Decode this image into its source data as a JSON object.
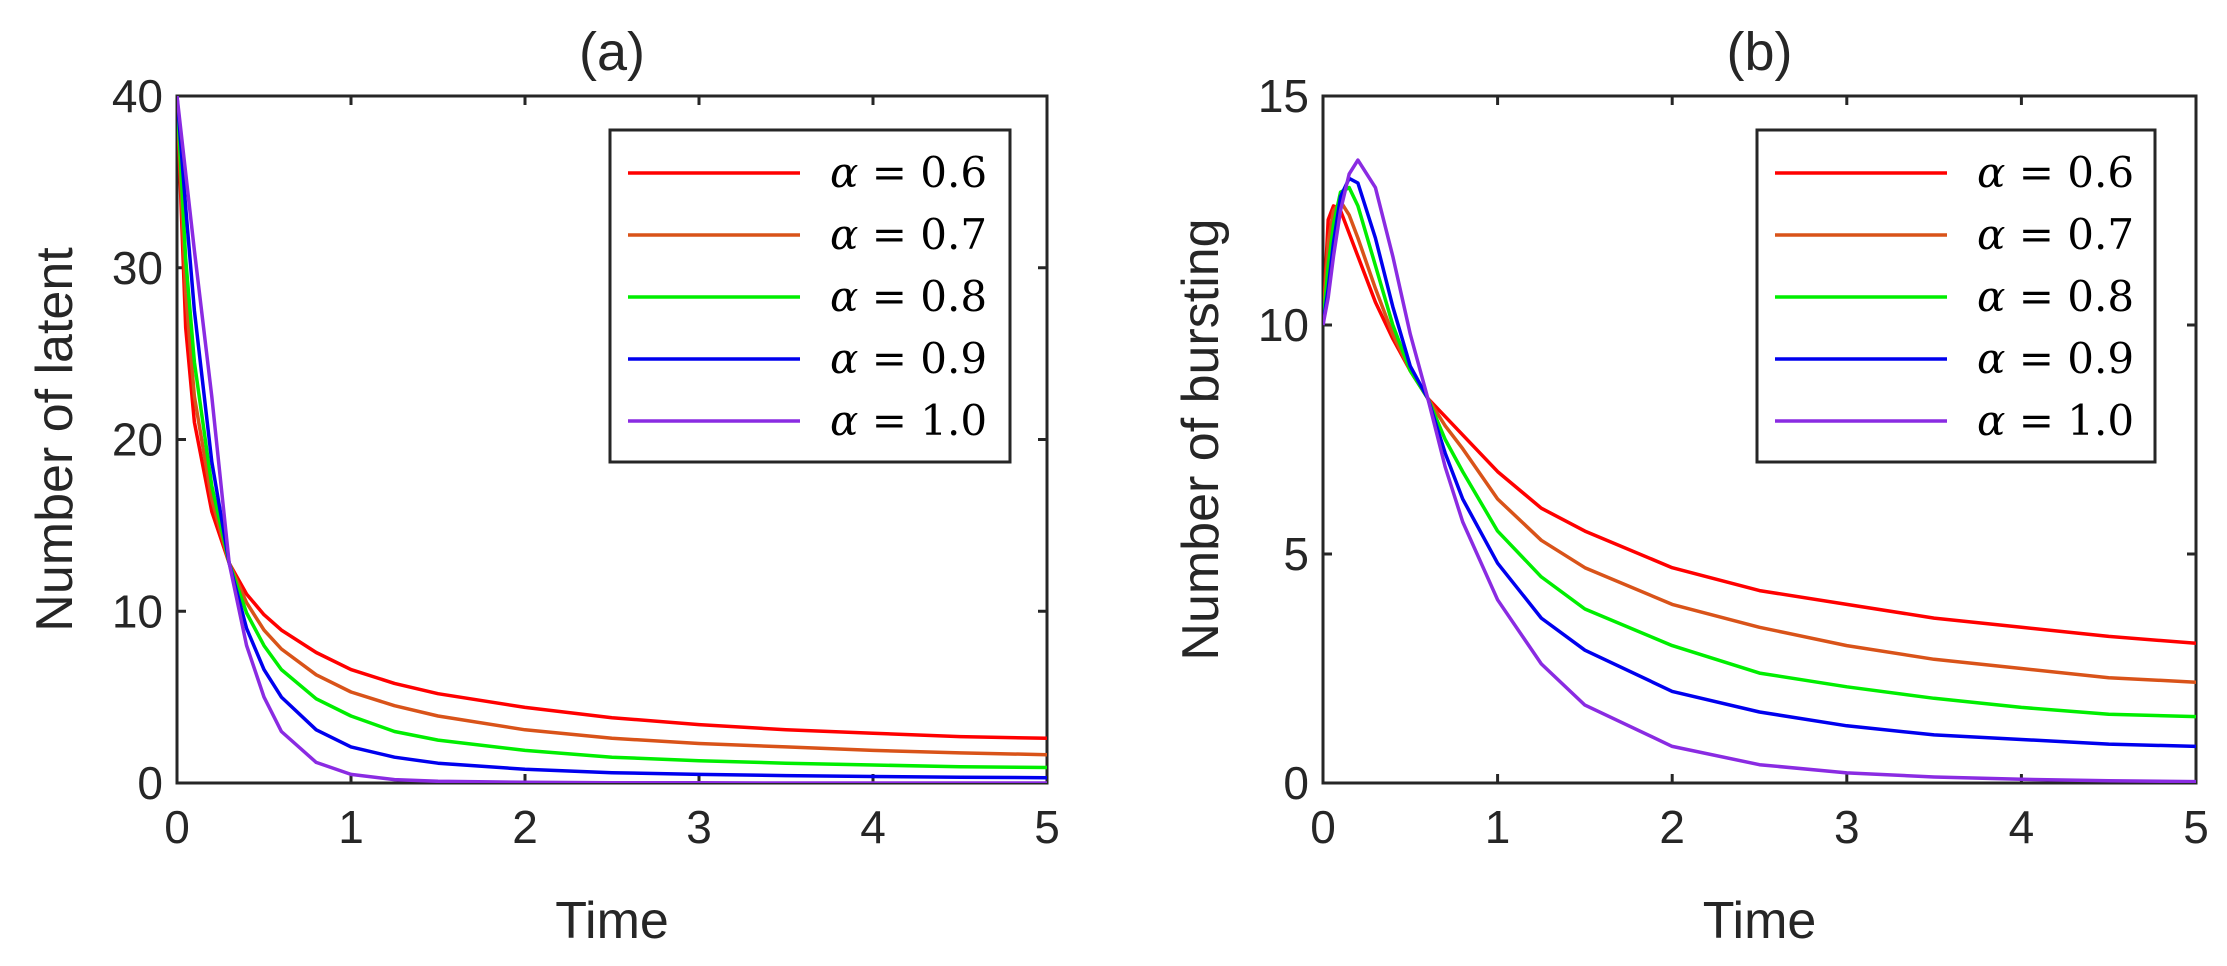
{
  "chart_data": [
    {
      "type": "line",
      "title": "(a)",
      "xlabel": "Time",
      "ylabel": "Number of latent",
      "xlim": [
        0,
        5
      ],
      "ylim": [
        0,
        40
      ],
      "xticks": [
        "0",
        "1",
        "2",
        "3",
        "4",
        "5"
      ],
      "yticks": [
        "0",
        "10",
        "20",
        "30",
        "40"
      ],
      "grid": false,
      "legend": "top-right",
      "x": [
        0,
        0.05,
        0.1,
        0.2,
        0.3,
        0.4,
        0.5,
        0.6,
        0.8,
        1.0,
        1.25,
        1.5,
        2.0,
        2.5,
        3.0,
        3.5,
        4.0,
        4.5,
        5.0
      ],
      "series": [
        {
          "name": "0.6",
          "color": "#ff0000",
          "values": [
            40,
            26.5,
            21,
            15.8,
            12.8,
            11.0,
            9.8,
            8.9,
            7.6,
            6.6,
            5.8,
            5.2,
            4.4,
            3.8,
            3.4,
            3.1,
            2.9,
            2.7,
            2.6
          ]
        },
        {
          "name": "0.7",
          "color": "#d95319",
          "values": [
            40,
            28.5,
            22.5,
            16.5,
            12.8,
            10.5,
            8.9,
            7.8,
            6.3,
            5.3,
            4.5,
            3.9,
            3.1,
            2.6,
            2.3,
            2.1,
            1.9,
            1.75,
            1.65
          ]
        },
        {
          "name": "0.8",
          "color": "#00ee00",
          "values": [
            40,
            30.5,
            24.5,
            17.3,
            12.8,
            9.9,
            8.0,
            6.6,
            4.9,
            3.9,
            3.0,
            2.5,
            1.9,
            1.5,
            1.3,
            1.15,
            1.05,
            0.95,
            0.9
          ]
        },
        {
          "name": "0.9",
          "color": "#0000ee",
          "values": [
            40,
            33.5,
            27.5,
            18.7,
            12.8,
            9.0,
            6.6,
            5.0,
            3.1,
            2.1,
            1.5,
            1.15,
            0.8,
            0.6,
            0.5,
            0.43,
            0.38,
            0.34,
            0.31
          ]
        },
        {
          "name": "1.0",
          "color": "#8a2be2",
          "values": [
            40,
            35.5,
            31.0,
            22.5,
            12.8,
            8.0,
            5.0,
            3.0,
            1.2,
            0.5,
            0.2,
            0.1,
            0.04,
            0.02,
            0.01,
            0.0,
            0.0,
            0.0,
            0.0
          ]
        }
      ]
    },
    {
      "type": "line",
      "title": "(b)",
      "xlabel": "Time",
      "ylabel": "Number of bursting",
      "xlim": [
        0,
        5
      ],
      "ylim": [
        0,
        15
      ],
      "xticks": [
        "0",
        "1",
        "2",
        "3",
        "4",
        "5"
      ],
      "yticks": [
        "0",
        "5",
        "10",
        "15"
      ],
      "grid": false,
      "legend": "top-right",
      "x": [
        0,
        0.03,
        0.06,
        0.1,
        0.15,
        0.2,
        0.3,
        0.4,
        0.5,
        0.6,
        0.7,
        0.8,
        1.0,
        1.25,
        1.5,
        2.0,
        2.5,
        3.0,
        3.5,
        4.0,
        4.5,
        5.0
      ],
      "series": [
        {
          "name": "0.6",
          "color": "#ff0000",
          "values": [
            10.0,
            12.3,
            12.6,
            12.5,
            12.0,
            11.5,
            10.5,
            9.7,
            9.0,
            8.4,
            8.0,
            7.6,
            6.8,
            6.0,
            5.5,
            4.7,
            4.2,
            3.9,
            3.6,
            3.4,
            3.2,
            3.05
          ]
        },
        {
          "name": "0.7",
          "color": "#d95319",
          "values": [
            10.0,
            11.8,
            12.5,
            12.7,
            12.4,
            11.9,
            10.8,
            9.8,
            9.0,
            8.4,
            7.8,
            7.3,
            6.2,
            5.3,
            4.7,
            3.9,
            3.4,
            3.0,
            2.7,
            2.5,
            2.3,
            2.2
          ]
        },
        {
          "name": "0.8",
          "color": "#00ee00",
          "values": [
            10.0,
            11.3,
            12.2,
            12.9,
            13.0,
            12.6,
            11.3,
            10.0,
            9.0,
            8.4,
            7.5,
            6.8,
            5.5,
            4.5,
            3.8,
            3.0,
            2.4,
            2.1,
            1.85,
            1.65,
            1.5,
            1.45
          ]
        },
        {
          "name": "0.9",
          "color": "#0000ee",
          "values": [
            10.0,
            10.8,
            11.8,
            12.8,
            13.2,
            13.1,
            11.9,
            10.4,
            9.1,
            8.4,
            7.2,
            6.2,
            4.8,
            3.6,
            2.9,
            2.0,
            1.55,
            1.25,
            1.05,
            0.95,
            0.85,
            0.8
          ]
        },
        {
          "name": "1.0",
          "color": "#8a2be2",
          "values": [
            10.0,
            10.6,
            11.5,
            12.5,
            13.3,
            13.6,
            13.0,
            11.5,
            9.8,
            8.4,
            6.9,
            5.7,
            4.0,
            2.6,
            1.7,
            0.8,
            0.4,
            0.22,
            0.13,
            0.08,
            0.05,
            0.03
          ]
        }
      ]
    }
  ]
}
